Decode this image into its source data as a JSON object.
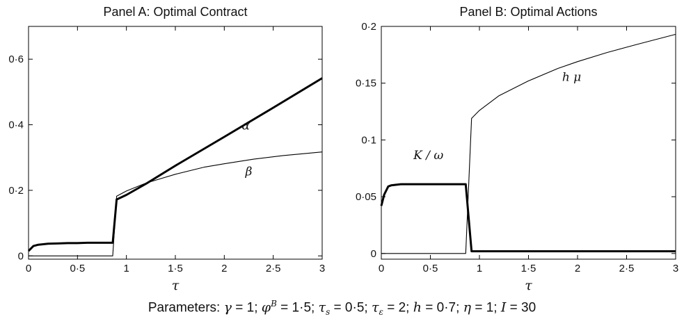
{
  "chart_data": [
    {
      "type": "line",
      "title": "Panel A: Optimal Contract",
      "xlabel": "τ",
      "ylabel": "",
      "xlim": [
        0,
        3
      ],
      "ylim": [
        -0.01,
        0.7
      ],
      "xticks": [
        "0",
        "0·5",
        "1",
        "1·5",
        "2",
        "2·5",
        "3"
      ],
      "xtick_values": [
        0,
        0.5,
        1,
        1.5,
        2,
        2.5,
        3
      ],
      "yticks": [
        "0",
        "0·2",
        "0·4",
        "0·6"
      ],
      "ytick_values": [
        0,
        0.2,
        0.4,
        0.6
      ],
      "grid": false,
      "series": [
        {
          "name": "α",
          "weight": "thick",
          "x": [
            0,
            0.05,
            0.1,
            0.2,
            0.3,
            0.4,
            0.5,
            0.6,
            0.7,
            0.8,
            0.86,
            0.9,
            1.0,
            1.2,
            1.5,
            2.0,
            2.5,
            3.0
          ],
          "y": [
            0.015,
            0.03,
            0.034,
            0.037,
            0.038,
            0.039,
            0.039,
            0.04,
            0.04,
            0.04,
            0.04,
            0.172,
            0.186,
            0.22,
            0.275,
            0.363,
            0.452,
            0.542
          ]
        },
        {
          "name": "β",
          "weight": "thin",
          "x": [
            0,
            0.2,
            0.5,
            0.8,
            0.86,
            0.9,
            1.0,
            1.2,
            1.5,
            1.8,
            2.0,
            2.3,
            2.6,
            3.0
          ],
          "y": [
            0,
            0,
            0,
            0,
            0,
            0.182,
            0.198,
            0.222,
            0.249,
            0.271,
            0.281,
            0.295,
            0.306,
            0.317
          ]
        }
      ],
      "annotations": [
        {
          "text": "α",
          "x": 2.22,
          "y": 0.385
        },
        {
          "text": "β",
          "x": 2.25,
          "y": 0.245
        }
      ]
    },
    {
      "type": "line",
      "title": "Panel B: Optimal Actions",
      "xlabel": "τ",
      "ylabel": "",
      "xlim": [
        0,
        3
      ],
      "ylim": [
        -0.005,
        0.2
      ],
      "xticks": [
        "0",
        "0·5",
        "1",
        "1·5",
        "2",
        "2·5",
        "3"
      ],
      "xtick_values": [
        0,
        0.5,
        1,
        1.5,
        2,
        2.5,
        3
      ],
      "yticks": [
        "0",
        "0·05",
        "0·1",
        "0·15",
        "0·2"
      ],
      "ytick_values": [
        0,
        0.05,
        0.1,
        0.15,
        0.2
      ],
      "grid": false,
      "series": [
        {
          "name": "K / ω",
          "weight": "thick",
          "x": [
            0,
            0.03,
            0.07,
            0.1,
            0.2,
            0.4,
            0.6,
            0.8,
            0.86,
            0.92,
            1.0,
            1.5,
            2.0,
            2.5,
            3.0
          ],
          "y": [
            0.042,
            0.052,
            0.059,
            0.06,
            0.061,
            0.061,
            0.061,
            0.061,
            0.061,
            0.002,
            0.002,
            0.002,
            0.002,
            0.002,
            0.002
          ]
        },
        {
          "name": "h μ",
          "weight": "thin",
          "x": [
            0,
            0.2,
            0.5,
            0.86,
            0.92,
            1.0,
            1.2,
            1.5,
            1.8,
            2.0,
            2.3,
            2.6,
            3.0
          ],
          "y": [
            0,
            0,
            0,
            0,
            0.119,
            0.126,
            0.139,
            0.152,
            0.163,
            0.169,
            0.177,
            0.184,
            0.193
          ]
        }
      ],
      "annotations": [
        {
          "text": "K / ω",
          "x": 0.48,
          "y": 0.083
        },
        {
          "text": "h μ",
          "x": 1.94,
          "y": 0.152
        }
      ]
    }
  ],
  "caption": {
    "prefix": "Parameters:",
    "gamma": "γ",
    "gamma_val": " = 1;",
    "phi": "φ",
    "phi_sup": "B",
    "phi_val": " = 1·5;",
    "tau": "τ",
    "tau_s_sub": "s",
    "tau_s_val": " = 0·5;",
    "tau_e_sub": "ε",
    "tau_e_val": " = 2;",
    "h": "h",
    "h_val": " = 0·7;",
    "eta": "η",
    "eta_val": " = 1;",
    "I": "I",
    "I_val": " = 30"
  }
}
